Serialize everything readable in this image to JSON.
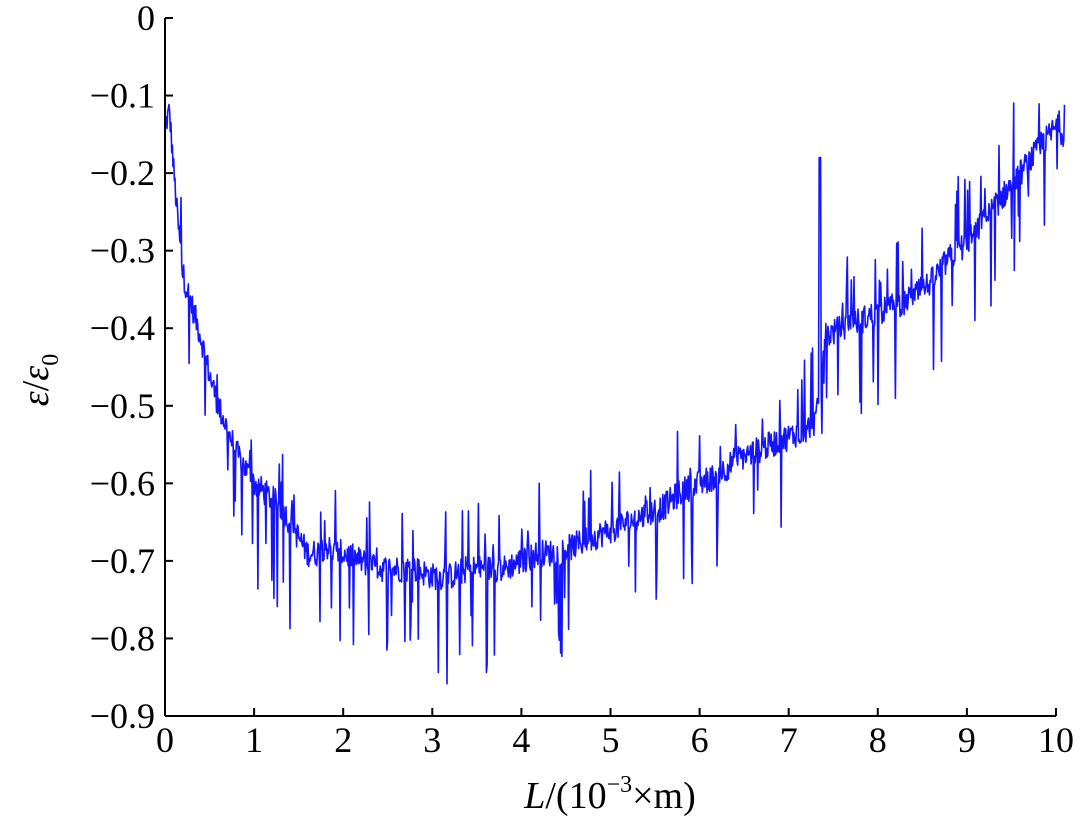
{
  "chart_data": {
    "type": "line",
    "title": "",
    "xlabel": {
      "italic": "L",
      "rest": "/(10",
      "sup": "−3",
      "tail": "×m)"
    },
    "ylabel": {
      "base1": "ε",
      "slash": "/",
      "base2": "ε",
      "sub": "0"
    },
    "xlim": [
      0,
      10
    ],
    "ylim": [
      -0.9,
      0
    ],
    "xticks": [
      0,
      1,
      2,
      3,
      4,
      5,
      6,
      7,
      8,
      9,
      10
    ],
    "xtick_labels": [
      "0",
      "1",
      "2",
      "3",
      "4",
      "5",
      "6",
      "7",
      "8",
      "9",
      "10"
    ],
    "yticks": [
      0,
      -0.1,
      -0.2,
      -0.3,
      -0.4,
      -0.5,
      -0.6,
      -0.7,
      -0.8,
      -0.9
    ],
    "ytick_labels": [
      "0",
      "−0.1",
      "−0.2",
      "−0.3",
      "−0.4",
      "−0.5",
      "−0.6",
      "−0.7",
      "−0.8",
      "−0.9"
    ],
    "grid": false,
    "color": "#1414ff",
    "series": [
      {
        "x": [
          0.0,
          0.05,
          0.1,
          0.15,
          0.2,
          0.25,
          0.3,
          0.4,
          0.5,
          0.6,
          0.7,
          0.8,
          0.9,
          1.0,
          1.1,
          1.2,
          1.3,
          1.4,
          1.5,
          1.6,
          1.7,
          1.8,
          1.9,
          2.0,
          2.2,
          2.4,
          2.6,
          2.8,
          3.0,
          3.2,
          3.4,
          3.6,
          3.8,
          4.0,
          4.2,
          4.4,
          4.6,
          4.8,
          5.0,
          5.2,
          5.4,
          5.6,
          5.8,
          6.0,
          6.2,
          6.4,
          6.6,
          6.8,
          7.0,
          7.2,
          7.3,
          7.35,
          7.4,
          7.6,
          7.8,
          8.0,
          8.2,
          8.4,
          8.6,
          8.8,
          9.0,
          9.2,
          9.4,
          9.6,
          9.8,
          10.0,
          10.1
        ],
        "y": [
          -0.14,
          -0.12,
          -0.2,
          -0.27,
          -0.33,
          -0.35,
          -0.37,
          -0.41,
          -0.46,
          -0.5,
          -0.53,
          -0.56,
          -0.58,
          -0.6,
          -0.61,
          -0.62,
          -0.63,
          -0.65,
          -0.67,
          -0.69,
          -0.69,
          -0.68,
          -0.69,
          -0.69,
          -0.7,
          -0.71,
          -0.71,
          -0.71,
          -0.72,
          -0.72,
          -0.71,
          -0.71,
          -0.71,
          -0.7,
          -0.69,
          -0.69,
          -0.68,
          -0.67,
          -0.66,
          -0.65,
          -0.64,
          -0.63,
          -0.61,
          -0.6,
          -0.59,
          -0.57,
          -0.56,
          -0.55,
          -0.54,
          -0.53,
          -0.52,
          -0.49,
          -0.41,
          -0.4,
          -0.39,
          -0.38,
          -0.37,
          -0.36,
          -0.34,
          -0.31,
          -0.29,
          -0.26,
          -0.23,
          -0.2,
          -0.17,
          -0.14,
          -0.15
        ]
      }
    ]
  }
}
